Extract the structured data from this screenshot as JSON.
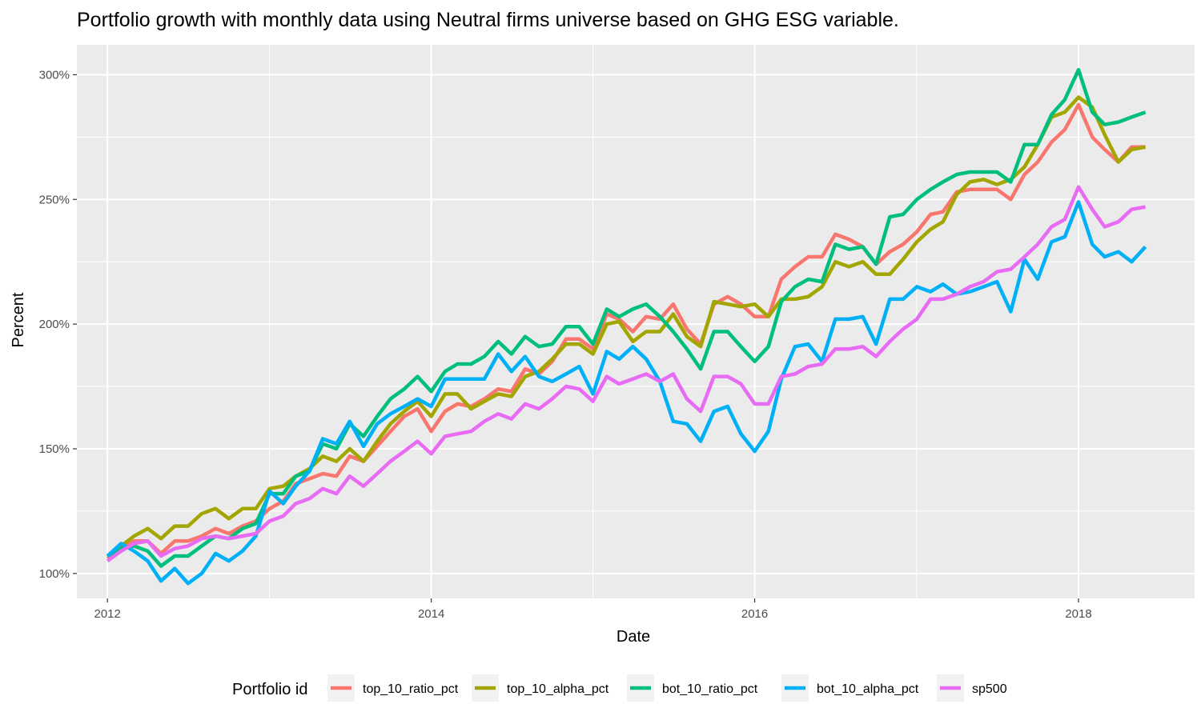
{
  "chart_data": {
    "type": "line",
    "title": "Portfolio growth with monthly data using Neutral firms universe based on GHG ESG variable.",
    "xlabel": "Date",
    "ylabel": "Percent",
    "xlim": [
      "2011-10-24",
      "2018-09-20"
    ],
    "ylim": [
      90,
      312
    ],
    "x_ticks": [
      {
        "value": "2012-01-01",
        "label": "2012"
      },
      {
        "value": "2014-01-01",
        "label": "2014"
      },
      {
        "value": "2016-01-01",
        "label": "2016"
      },
      {
        "value": "2018-01-01",
        "label": "2018"
      }
    ],
    "y_ticks": [
      {
        "value": 100,
        "label": "100%"
      },
      {
        "value": 150,
        "label": "150%"
      },
      {
        "value": 200,
        "label": "200%"
      },
      {
        "value": 250,
        "label": "250%"
      },
      {
        "value": 300,
        "label": "300%"
      }
    ],
    "grid": true,
    "legend": {
      "title": "Portfolio id",
      "position": "bottom"
    },
    "x": [
      "2012-01",
      "2012-02",
      "2012-03",
      "2012-04",
      "2012-05",
      "2012-06",
      "2012-07",
      "2012-08",
      "2012-09",
      "2012-10",
      "2012-11",
      "2012-12",
      "2013-01",
      "2013-02",
      "2013-03",
      "2013-04",
      "2013-05",
      "2013-06",
      "2013-07",
      "2013-08",
      "2013-09",
      "2013-10",
      "2013-11",
      "2013-12",
      "2014-01",
      "2014-02",
      "2014-03",
      "2014-04",
      "2014-05",
      "2014-06",
      "2014-07",
      "2014-08",
      "2014-09",
      "2014-10",
      "2014-11",
      "2014-12",
      "2015-01",
      "2015-02",
      "2015-03",
      "2015-04",
      "2015-05",
      "2015-06",
      "2015-07",
      "2015-08",
      "2015-09",
      "2015-10",
      "2015-11",
      "2015-12",
      "2016-01",
      "2016-02",
      "2016-03",
      "2016-04",
      "2016-05",
      "2016-06",
      "2016-07",
      "2016-08",
      "2016-09",
      "2016-10",
      "2016-11",
      "2016-12",
      "2017-01",
      "2017-02",
      "2017-03",
      "2017-04",
      "2017-05",
      "2017-06",
      "2017-07",
      "2017-08",
      "2017-09",
      "2017-10",
      "2017-11",
      "2017-12",
      "2018-01",
      "2018-02",
      "2018-03",
      "2018-04",
      "2018-05",
      "2018-06"
    ],
    "series": [
      {
        "name": "top_10_ratio_pct",
        "color": "#F8766D",
        "values": [
          106,
          110,
          113,
          113,
          108,
          113,
          113,
          115,
          118,
          116,
          119,
          121,
          126,
          129,
          136,
          138,
          140,
          139,
          147,
          145,
          151,
          157,
          163,
          166,
          157,
          165,
          168,
          167,
          170,
          174,
          173,
          182,
          180,
          185,
          194,
          194,
          190,
          204,
          202,
          197,
          203,
          202,
          208,
          198,
          192,
          208,
          211,
          208,
          203,
          203,
          218,
          223,
          227,
          227,
          236,
          234,
          231,
          224,
          229,
          232,
          237,
          244,
          245,
          253,
          254,
          254,
          254,
          250,
          260,
          265,
          273,
          278,
          288,
          275,
          270,
          265,
          271,
          271
        ]
      },
      {
        "name": "top_10_alpha_pct",
        "color": "#A3A500",
        "values": [
          107,
          111,
          115,
          118,
          114,
          119,
          119,
          124,
          126,
          122,
          126,
          126,
          134,
          135,
          139,
          142,
          147,
          145,
          150,
          145,
          153,
          160,
          165,
          169,
          163,
          172,
          172,
          166,
          169,
          172,
          171,
          179,
          181,
          186,
          192,
          192,
          188,
          200,
          201,
          193,
          197,
          197,
          204,
          195,
          191,
          209,
          208,
          207,
          208,
          203,
          210,
          210,
          211,
          215,
          225,
          223,
          225,
          220,
          220,
          226,
          233,
          238,
          241,
          252,
          257,
          258,
          256,
          258,
          263,
          272,
          283,
          285,
          291,
          287,
          276,
          265,
          270,
          271
        ]
      },
      {
        "name": "bot_10_ratio_pct",
        "color": "#00BF7D",
        "values": [
          107,
          110,
          111,
          109,
          103,
          107,
          107,
          111,
          115,
          114,
          118,
          120,
          132,
          132,
          139,
          141,
          152,
          150,
          160,
          155,
          163,
          170,
          174,
          179,
          173,
          181,
          184,
          184,
          187,
          193,
          188,
          195,
          191,
          192,
          199,
          199,
          192,
          206,
          203,
          206,
          208,
          203,
          197,
          190,
          182,
          197,
          197,
          191,
          185,
          191,
          209,
          215,
          218,
          217,
          232,
          230,
          231,
          224,
          243,
          244,
          250,
          254,
          257,
          260,
          261,
          261,
          261,
          257,
          272,
          272,
          284,
          290,
          302,
          285,
          280,
          281,
          283,
          285
        ]
      },
      {
        "name": "bot_10_alpha_pct",
        "color": "#00B0F6",
        "values": [
          107,
          112,
          109,
          105,
          97,
          102,
          96,
          100,
          108,
          105,
          109,
          115,
          133,
          128,
          135,
          141,
          154,
          152,
          161,
          151,
          160,
          164,
          167,
          170,
          167,
          178,
          178,
          178,
          178,
          188,
          181,
          187,
          179,
          177,
          180,
          183,
          172,
          189,
          186,
          191,
          186,
          177,
          161,
          160,
          153,
          165,
          167,
          156,
          149,
          157,
          178,
          191,
          192,
          185,
          202,
          202,
          203,
          192,
          210,
          210,
          215,
          213,
          216,
          212,
          213,
          215,
          217,
          205,
          226,
          218,
          233,
          235,
          249,
          232,
          227,
          229,
          225,
          231
        ]
      },
      {
        "name": "sp500",
        "color": "#E76BF3",
        "values": [
          105,
          109,
          112,
          113,
          107,
          110,
          111,
          114,
          115,
          114,
          115,
          116,
          121,
          123,
          128,
          130,
          134,
          132,
          139,
          135,
          140,
          145,
          149,
          153,
          148,
          155,
          156,
          157,
          161,
          164,
          162,
          168,
          166,
          170,
          175,
          174,
          169,
          179,
          176,
          178,
          180,
          177,
          180,
          170,
          165,
          179,
          179,
          176,
          168,
          168,
          179,
          180,
          183,
          184,
          190,
          190,
          191,
          187,
          193,
          198,
          202,
          210,
          210,
          212,
          215,
          217,
          221,
          222,
          227,
          232,
          239,
          242,
          255,
          246,
          239,
          241,
          246,
          247
        ]
      }
    ]
  }
}
